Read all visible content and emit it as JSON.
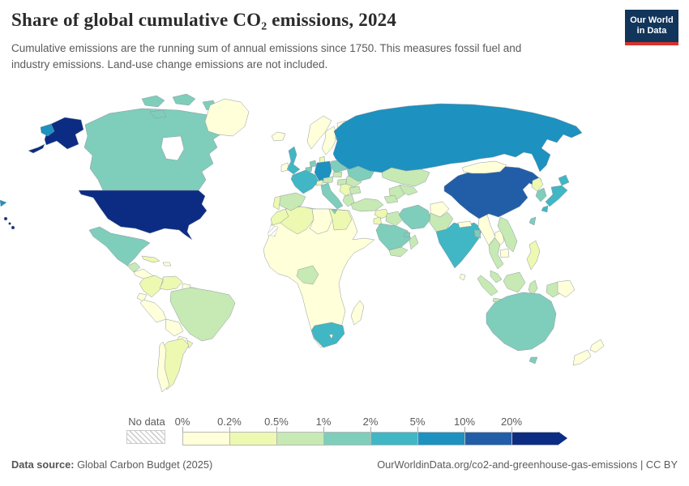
{
  "header": {
    "title": "Share of global cumulative CO₂ emissions, 2024",
    "subtitle": "Cumulative emissions are the running sum of annual emissions since 1750. This measures fossil fuel and industry emissions. Land-use change emissions are not included.",
    "logo_line1": "Our World",
    "logo_line2": "in Data",
    "logo_bg": "#12355b",
    "logo_accent": "#d7332a"
  },
  "footer": {
    "source_label": "Data source:",
    "source_value": " Global Carbon Budget (2025)",
    "link_text": "OurWorldinData.org/co2-and-greenhouse-gas-emissions | CC BY"
  },
  "chart_data": {
    "type": "heatmap",
    "subtype": "choropleth-world-map",
    "title": "Share of global cumulative CO₂ emissions, 2024",
    "unit": "%",
    "year": 2024,
    "legend": {
      "no_data_label": "No data",
      "tick_labels": [
        "0%",
        "0.2%",
        "0.5%",
        "1%",
        "2%",
        "5%",
        "10%",
        "20%"
      ],
      "position": "bottom",
      "open_ended_arrow": true
    },
    "bins": [
      {
        "range": "0%–0.2%",
        "color": "#ffffd9"
      },
      {
        "range": "0.2%–0.5%",
        "color": "#edf8b1"
      },
      {
        "range": "0.5%–1%",
        "color": "#c7e9b4"
      },
      {
        "range": "1%–2%",
        "color": "#7fcdbb"
      },
      {
        "range": "2%–5%",
        "color": "#41b6c4"
      },
      {
        "range": "5%–10%",
        "color": "#1d91c0"
      },
      {
        "range": "10%–20%",
        "color": "#225ea8"
      },
      {
        "range": "20%+",
        "color": "#0c2c84"
      }
    ],
    "countries": {
      "united-states": 7,
      "china": 6,
      "russia": 5,
      "germany": 5,
      "united-kingdom": 4,
      "france": 4,
      "india": 4,
      "japan": 4,
      "south-africa": 4,
      "canada": 3,
      "mexico": 3,
      "poland": 3,
      "ukraine": 3,
      "italy": 3,
      "netherlands": 3,
      "belgium": 3,
      "iran": 3,
      "saudi-arabia": 3,
      "south-korea": 3,
      "taiwan": 3,
      "australia": 3,
      "bangladesh": 3,
      "uae": 3,
      "brazil": 2,
      "nigeria": 2,
      "spain": 2,
      "romania": 2,
      "czechia": 2,
      "austria": 2,
      "hungary": 2,
      "bulgaria": 2,
      "greece": 2,
      "turkey": 2,
      "iraq": 2,
      "kazakhstan": 2,
      "uzbekistan": 2,
      "turkmenistan": 2,
      "azerbaijan": 2,
      "pakistan": 2,
      "thailand": 2,
      "vietnam": 2,
      "malaysia": 2,
      "indonesia": 2,
      "yemen": 2,
      "oman": 2,
      "belarus": 2,
      "guatemala": 2,
      "morocco": 1,
      "algeria": 1,
      "egypt": 1,
      "cuba": 1,
      "colombia": 1,
      "venezuela": 1,
      "argentina": 1,
      "uruguay": 1,
      "portugal": 1,
      "baltics": 1,
      "balkans": 1,
      "philippines": 1,
      "north-korea": 1,
      "denmark": 1,
      "switzerland": 1,
      "syria": 1,
      "jordan-israel": 1,
      "greenland": 0,
      "iceland": 0,
      "ireland": 0,
      "norway": 0,
      "sweden": 0,
      "finland": 0,
      "peru": 0,
      "bolivia": 0,
      "paraguay": 0,
      "chile": 0,
      "ecuador": 0,
      "guyana-suriname": 0,
      "central-america": 0,
      "hispaniola": 0,
      "africa-other": 0,
      "libya": 0,
      "madagascar": 0,
      "afghanistan": 0,
      "mongolia": 0,
      "myanmar": 0,
      "laos": 0,
      "cambodia": 0,
      "nepal": 0,
      "sri-lanka": 0,
      "papua-new-guinea": 0,
      "new-zealand": 0,
      "lesotho": 0,
      "french-guiana": "no-data",
      "western-sahara": "no-data"
    }
  }
}
